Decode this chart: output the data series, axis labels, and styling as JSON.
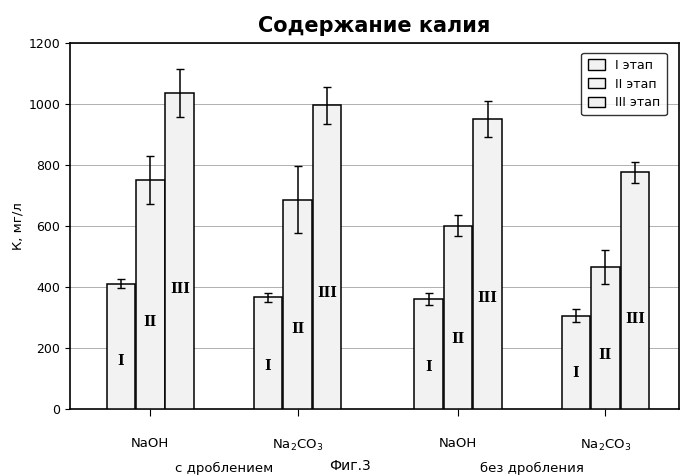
{
  "title": "Содержание калия",
  "ylabel": "К, мг/л",
  "figcaption": "Фиг.3",
  "ylim": [
    0,
    1200
  ],
  "yticks": [
    0,
    200,
    400,
    600,
    800,
    1000,
    1200
  ],
  "stages": [
    "I этап",
    "II этап",
    "III этап"
  ],
  "formula_labels": [
    "NaOH",
    "Na$_2$CO$_3$",
    "NaOH",
    "Na$_2$CO$_3$"
  ],
  "section_labels": [
    "с дроблением",
    "без дробления"
  ],
  "values": [
    [
      410,
      750,
      1035
    ],
    [
      365,
      685,
      995
    ],
    [
      360,
      600,
      950
    ],
    [
      305,
      465,
      775
    ]
  ],
  "errors": [
    [
      15,
      80,
      80
    ],
    [
      15,
      110,
      60
    ],
    [
      20,
      35,
      60
    ],
    [
      20,
      55,
      35
    ]
  ],
  "bar_color": "#f2f2f2",
  "bar_edge_color": "#000000",
  "background_color": "#ffffff",
  "grid_color": "#b0b0b0",
  "roman_labels": [
    "I",
    "II",
    "III"
  ],
  "bar_width": 0.22,
  "group_centers": [
    0.55,
    1.65,
    2.85,
    3.95
  ],
  "xlim": [
    -0.05,
    4.5
  ]
}
